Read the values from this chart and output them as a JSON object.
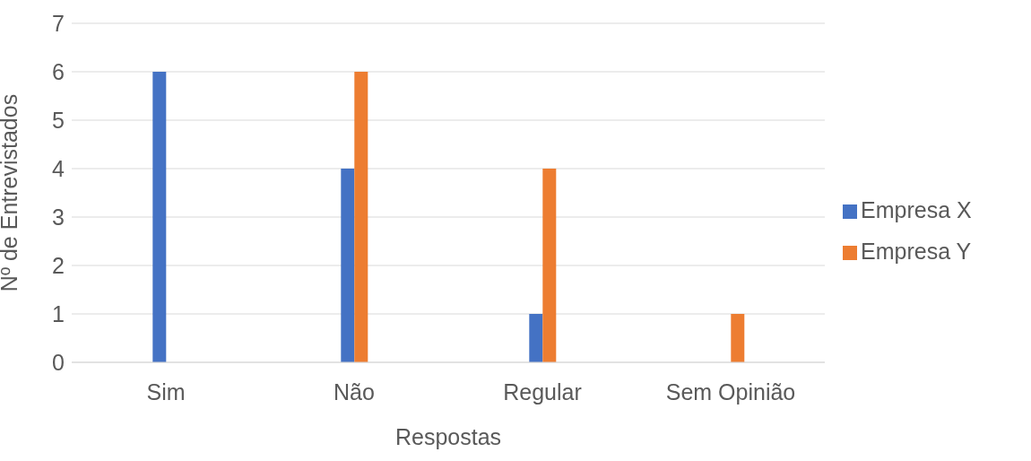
{
  "chart_data": {
    "type": "bar",
    "xlabel": "Respostas",
    "ylabel": "Nº de Entrevistados",
    "categories": [
      "Sim",
      "Não",
      "Regular",
      "Sem Opinião"
    ],
    "series": [
      {
        "name": "Empresa X",
        "color": "#4472c4",
        "values": [
          6,
          4,
          1,
          0
        ]
      },
      {
        "name": "Empresa Y",
        "color": "#ed7d31",
        "values": [
          0,
          6,
          4,
          1
        ]
      }
    ],
    "ylim": [
      0,
      7
    ],
    "yticks": [
      0,
      1,
      2,
      3,
      4,
      5,
      6,
      7
    ],
    "grid": "y",
    "legend": "right"
  }
}
